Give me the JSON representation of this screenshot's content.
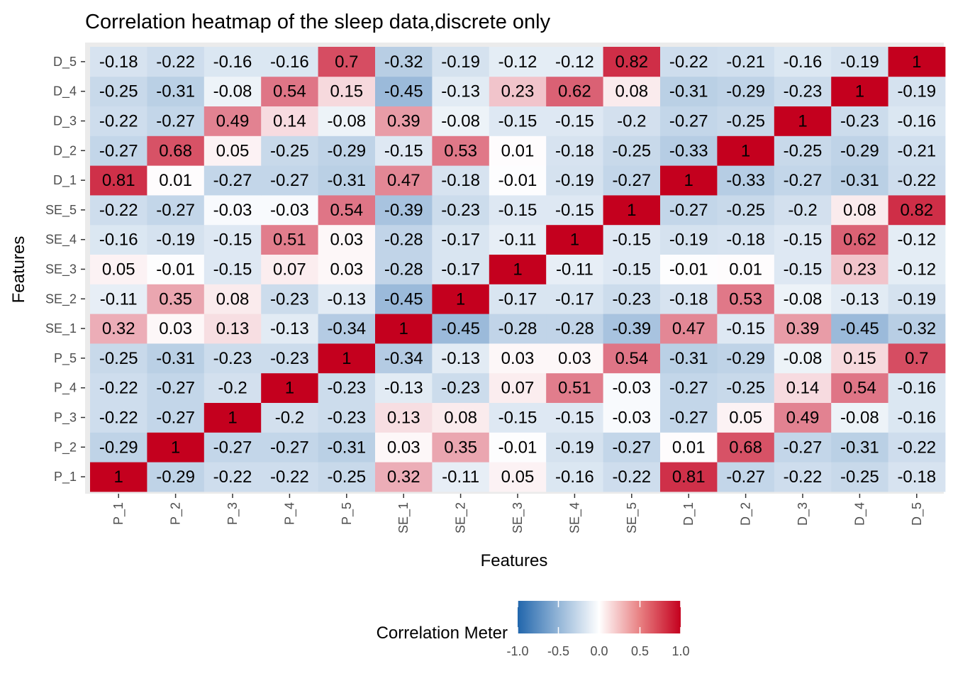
{
  "chart_data": {
    "type": "heatmap",
    "title": "Correlation heatmap of the sleep data,discrete only",
    "xlabel": "Features",
    "ylabel": "Features",
    "x_categories": [
      "P_1",
      "P_2",
      "P_3",
      "P_4",
      "P_5",
      "SE_1",
      "SE_2",
      "SE_3",
      "SE_4",
      "SE_5",
      "D_1",
      "D_2",
      "D_3",
      "D_4",
      "D_5"
    ],
    "y_categories": [
      "P_1",
      "P_2",
      "P_3",
      "P_4",
      "P_5",
      "SE_1",
      "SE_2",
      "SE_3",
      "SE_4",
      "SE_5",
      "D_1",
      "D_2",
      "D_3",
      "D_4",
      "D_5"
    ],
    "values": [
      [
        1,
        -0.29,
        -0.22,
        -0.22,
        -0.25,
        0.32,
        -0.11,
        0.05,
        -0.16,
        -0.22,
        0.81,
        -0.27,
        -0.22,
        -0.25,
        -0.18
      ],
      [
        -0.29,
        1,
        -0.27,
        -0.27,
        -0.31,
        0.03,
        0.35,
        -0.01,
        -0.19,
        -0.27,
        0.01,
        0.68,
        -0.27,
        -0.31,
        -0.22
      ],
      [
        -0.22,
        -0.27,
        1,
        -0.2,
        -0.23,
        0.13,
        0.08,
        -0.15,
        -0.15,
        -0.03,
        -0.27,
        0.05,
        0.49,
        -0.08,
        -0.16
      ],
      [
        -0.22,
        -0.27,
        -0.2,
        1,
        -0.23,
        -0.13,
        -0.23,
        0.07,
        0.51,
        -0.03,
        -0.27,
        -0.25,
        0.14,
        0.54,
        -0.16
      ],
      [
        -0.25,
        -0.31,
        -0.23,
        -0.23,
        1,
        -0.34,
        -0.13,
        0.03,
        0.03,
        0.54,
        -0.31,
        -0.29,
        -0.08,
        0.15,
        0.7
      ],
      [
        0.32,
        0.03,
        0.13,
        -0.13,
        -0.34,
        1,
        -0.45,
        -0.28,
        -0.28,
        -0.39,
        0.47,
        -0.15,
        0.39,
        -0.45,
        -0.32
      ],
      [
        -0.11,
        0.35,
        0.08,
        -0.23,
        -0.13,
        -0.45,
        1,
        -0.17,
        -0.17,
        -0.23,
        -0.18,
        0.53,
        -0.08,
        -0.13,
        -0.19
      ],
      [
        0.05,
        -0.01,
        -0.15,
        0.07,
        0.03,
        -0.28,
        -0.17,
        1,
        -0.11,
        -0.15,
        -0.01,
        0.01,
        -0.15,
        0.23,
        -0.12
      ],
      [
        -0.16,
        -0.19,
        -0.15,
        0.51,
        0.03,
        -0.28,
        -0.17,
        -0.11,
        1,
        -0.15,
        -0.19,
        -0.18,
        -0.15,
        0.62,
        -0.12
      ],
      [
        -0.22,
        -0.27,
        -0.03,
        -0.03,
        0.54,
        -0.39,
        -0.23,
        -0.15,
        -0.15,
        1,
        -0.27,
        -0.25,
        -0.2,
        0.08,
        0.82
      ],
      [
        0.81,
        0.01,
        -0.27,
        -0.27,
        -0.31,
        0.47,
        -0.18,
        -0.01,
        -0.19,
        -0.27,
        1,
        -0.33,
        -0.27,
        -0.31,
        -0.22
      ],
      [
        -0.27,
        0.68,
        0.05,
        -0.25,
        -0.29,
        -0.15,
        0.53,
        0.01,
        -0.18,
        -0.25,
        -0.33,
        1,
        -0.25,
        -0.29,
        -0.21
      ],
      [
        -0.22,
        -0.27,
        0.49,
        0.14,
        -0.08,
        0.39,
        -0.08,
        -0.15,
        -0.15,
        -0.2,
        -0.27,
        -0.25,
        1,
        -0.23,
        -0.16
      ],
      [
        -0.25,
        -0.31,
        -0.08,
        0.54,
        0.15,
        -0.45,
        -0.13,
        0.23,
        0.62,
        0.08,
        -0.31,
        -0.29,
        -0.23,
        1,
        -0.19
      ],
      [
        -0.18,
        -0.22,
        -0.16,
        -0.16,
        0.7,
        -0.32,
        -0.19,
        -0.12,
        -0.12,
        0.82,
        -0.22,
        -0.21,
        -0.16,
        -0.19,
        1
      ]
    ],
    "legend": {
      "title": "Correlation Meter",
      "ticks": [
        "-1.0",
        "-0.5",
        "0.0",
        "0.5",
        "1.0"
      ],
      "range": [
        -1,
        1
      ],
      "low_color": "#2166ac",
      "mid_color": "#ffffff",
      "high_color": "#c4001e",
      "position": "bottom"
    },
    "panel_background": "#ebebeb"
  }
}
